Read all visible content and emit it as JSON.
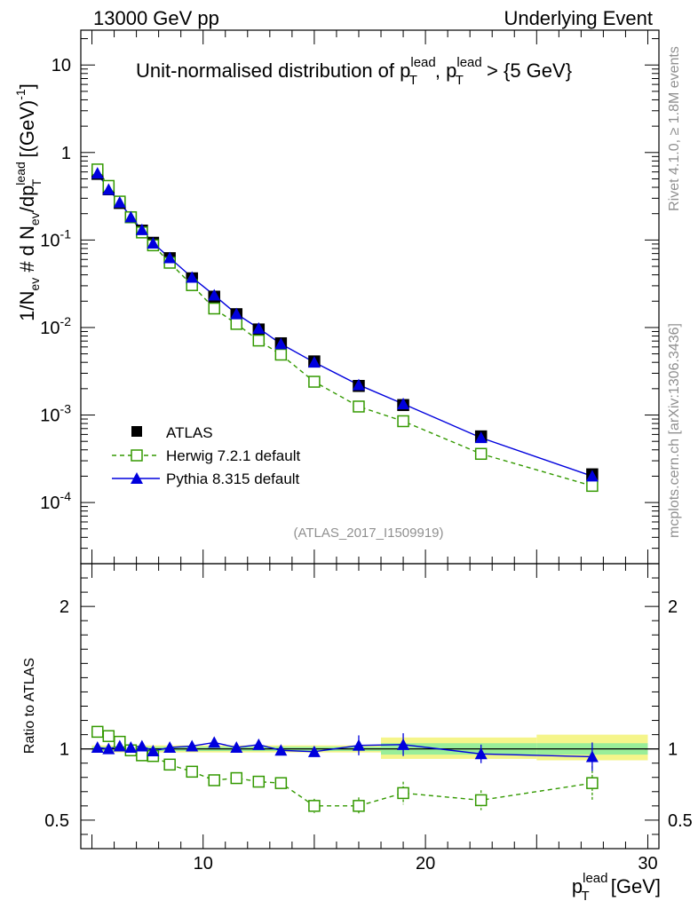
{
  "header": {
    "left": "13000 GeV pp",
    "right": "Underlying Event"
  },
  "title": {
    "main": "Unit-normalised distribution of p",
    "sup1": "lead",
    "sub1": "T",
    "sep": ", p",
    "sup2": "lead",
    "sub2": "T",
    "cut": " > {5 GeV}"
  },
  "side_labels": {
    "rivet": "Rivet 4.1.0, ≥ 1.8M events",
    "mcplots": "mcplots.cern.ch [arXiv:1306.3436]"
  },
  "analysis_id": "(ATLAS_2017_I1509919)",
  "ylabel_main": {
    "a": "1/N",
    "a_sub": "ev",
    "b": " # d N",
    "b_sub": "ev",
    "c": "/dp",
    "c_sup": "lead",
    "c_sub": "T",
    "d": " [(GeV)",
    "d_sup": "-1",
    "e": "]"
  },
  "ylabel_ratio": "Ratio to ATLAS",
  "xlabel": {
    "p": "p",
    "sup": "lead",
    "sub": "T",
    "unit": " [GeV]"
  },
  "legend": {
    "atlas": "ATLAS",
    "herwig": "Herwig 7.2.1 default",
    "pythia": "Pythia 8.315 default"
  },
  "colors": {
    "atlas": "#000000",
    "herwig": "#339900",
    "pythia": "#0000dd",
    "band_inner": "#99ee99",
    "band_outer": "#f5f58a",
    "ref_line": "#000000"
  },
  "chart_data": [
    {
      "type": "scatter",
      "panel": "main",
      "title": "Unit-normalised distribution of pT lead, pT lead > {5 GeV}",
      "xlabel": "pT lead [GeV]",
      "ylabel": "1/Nev # d Nev/dpT lead [(GeV)^-1]",
      "xlim": [
        4.5,
        30.5
      ],
      "ylim": [
        2e-05,
        25
      ],
      "yscale": "log",
      "xticks": [
        10,
        20,
        30
      ],
      "yticks": [
        {
          "value": 0.0001,
          "base": "10",
          "exp": "-4"
        },
        {
          "value": 0.001,
          "base": "10",
          "exp": "-3"
        },
        {
          "value": 0.01,
          "base": "10",
          "exp": "-2"
        },
        {
          "value": 0.1,
          "base": "10",
          "exp": "-1"
        },
        {
          "value": 1,
          "base": "1",
          "exp": ""
        },
        {
          "value": 10,
          "base": "10",
          "exp": ""
        }
      ],
      "x": [
        5.25,
        5.75,
        6.25,
        6.75,
        7.25,
        7.75,
        8.5,
        9.5,
        10.5,
        11.5,
        12.5,
        13.5,
        15,
        17,
        19,
        22.5,
        27.5
      ],
      "series": [
        {
          "name": "ATLAS",
          "marker": "filled-square",
          "values": [
            0.57,
            0.38,
            0.265,
            0.182,
            0.128,
            0.093,
            0.062,
            0.0365,
            0.0225,
            0.0142,
            0.0095,
            0.0066,
            0.0041,
            0.00215,
            0.0013,
            0.00057,
            0.00021
          ]
        },
        {
          "name": "Herwig 7.2.1 default",
          "marker": "open-square",
          "line": "dashed",
          "values": [
            0.64,
            0.415,
            0.275,
            0.182,
            0.122,
            0.087,
            0.055,
            0.0305,
            0.0165,
            0.011,
            0.0071,
            0.0049,
            0.0024,
            0.00125,
            0.00085,
            0.00036,
            0.000155
          ]
        },
        {
          "name": "Pythia 8.315 default",
          "marker": "filled-triangle",
          "line": "solid",
          "values": [
            0.58,
            0.378,
            0.27,
            0.183,
            0.131,
            0.092,
            0.0625,
            0.0374,
            0.0234,
            0.0143,
            0.0098,
            0.0065,
            0.004,
            0.00221,
            0.00134,
            0.00055,
            0.0002
          ]
        }
      ]
    },
    {
      "type": "scatter",
      "panel": "ratio",
      "xlabel": "pT lead [GeV]",
      "ylabel": "Ratio to ATLAS",
      "xlim": [
        4.5,
        30.5
      ],
      "ylim": [
        0.3,
        2.3
      ],
      "yticks": [
        0.5,
        1,
        2
      ],
      "xticks": [
        10,
        20,
        30
      ],
      "x": [
        5.25,
        5.75,
        6.25,
        6.75,
        7.25,
        7.75,
        8.5,
        9.5,
        10.5,
        11.5,
        12.5,
        13.5,
        15,
        17,
        19,
        22.5,
        27.5
      ],
      "bands": [
        {
          "x0": 5,
          "x1": 18,
          "inner": [
            0.985,
            1.015
          ],
          "outer": [
            0.975,
            1.025
          ]
        },
        {
          "x0": 18,
          "x1": 25,
          "inner": [
            0.96,
            1.04
          ],
          "outer": [
            0.93,
            1.08
          ]
        },
        {
          "x0": 25,
          "x1": 30,
          "inner": [
            0.96,
            1.04
          ],
          "outer": [
            0.92,
            1.1
          ]
        }
      ],
      "series": [
        {
          "name": "Herwig 7.2.1 default",
          "marker": "open-square",
          "line": "dashed",
          "values": [
            1.12,
            1.09,
            1.05,
            0.99,
            0.955,
            0.95,
            0.89,
            0.84,
            0.78,
            0.795,
            0.77,
            0.76,
            0.6,
            0.6,
            0.69,
            0.64,
            0.76
          ],
          "errors": [
            0.01,
            0.01,
            0.01,
            0.01,
            0.01,
            0.01,
            0.015,
            0.02,
            0.025,
            0.03,
            0.035,
            0.04,
            0.05,
            0.06,
            0.08,
            0.07,
            0.12
          ]
        },
        {
          "name": "Pythia 8.315 default",
          "marker": "filled-triangle",
          "line": "solid",
          "values": [
            1.01,
            1.0,
            1.02,
            1.01,
            1.02,
            0.985,
            1.01,
            1.02,
            1.045,
            1.01,
            1.03,
            0.99,
            0.98,
            1.025,
            1.03,
            0.965,
            0.945
          ],
          "errors": [
            0.005,
            0.005,
            0.005,
            0.008,
            0.01,
            0.012,
            0.012,
            0.015,
            0.02,
            0.025,
            0.03,
            0.035,
            0.035,
            0.07,
            0.08,
            0.065,
            0.1
          ]
        }
      ]
    }
  ]
}
